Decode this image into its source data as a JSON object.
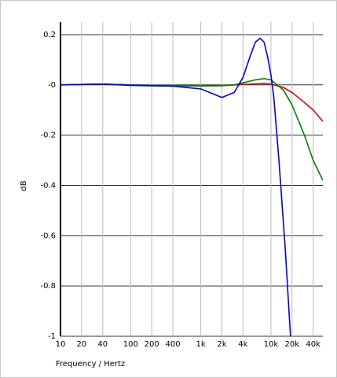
{
  "chart_data": {
    "type": "line",
    "x_label": "Frequency / Hertz",
    "y_label": "dB",
    "xlog": true,
    "grid": true,
    "xlim": [
      10,
      55000
    ],
    "ylim": [
      -1,
      0.25
    ],
    "xticks": [
      10,
      20,
      40,
      100,
      200,
      400,
      {
        "value": 1000,
        "label": "1k"
      },
      {
        "value": 2000,
        "label": "2k"
      },
      {
        "value": 4000,
        "label": "4k"
      },
      {
        "value": 10000,
        "label": "10k"
      },
      {
        "value": 20000,
        "label": "20k"
      },
      {
        "value": 40000,
        "label": "40k"
      }
    ],
    "yticks": [
      0.2,
      {
        "value": 0,
        "label": "-0"
      },
      -0.2,
      -0.4,
      -0.6,
      -0.8,
      -1
    ],
    "series": [
      {
        "color": "#e00000",
        "x": [
          10,
          40,
          100,
          400,
          1000,
          2000,
          4000,
          8000,
          10000,
          15000,
          20000,
          30000,
          40000,
          55000
        ],
        "values": [
          0,
          0.003,
          0,
          -0.003,
          -0.004,
          -0.003,
          0.002,
          0.005,
          0.003,
          -0.01,
          -0.03,
          -0.07,
          -0.1,
          -0.145
        ]
      },
      {
        "color": "#008000",
        "x": [
          10,
          40,
          100,
          400,
          1000,
          2000,
          3000,
          4000,
          6000,
          8000,
          10000,
          15000,
          20000,
          30000,
          40000,
          55000
        ],
        "values": [
          0,
          0.003,
          0,
          -0.003,
          -0.004,
          -0.003,
          0,
          0.008,
          0.02,
          0.025,
          0.02,
          -0.02,
          -0.08,
          -0.2,
          -0.3,
          -0.38
        ]
      },
      {
        "color": "#0000e0",
        "x": [
          10,
          40,
          100,
          400,
          1000,
          2000,
          3000,
          4000,
          5000,
          6000,
          7000,
          8000,
          9000,
          10000,
          11000,
          13000,
          16000,
          19000
        ],
        "values": [
          0,
          0.003,
          -0.002,
          -0.005,
          -0.016,
          -0.05,
          -0.03,
          0.03,
          0.11,
          0.17,
          0.185,
          0.17,
          0.11,
          0.04,
          -0.05,
          -0.3,
          -0.65,
          -1.0
        ]
      }
    ]
  }
}
